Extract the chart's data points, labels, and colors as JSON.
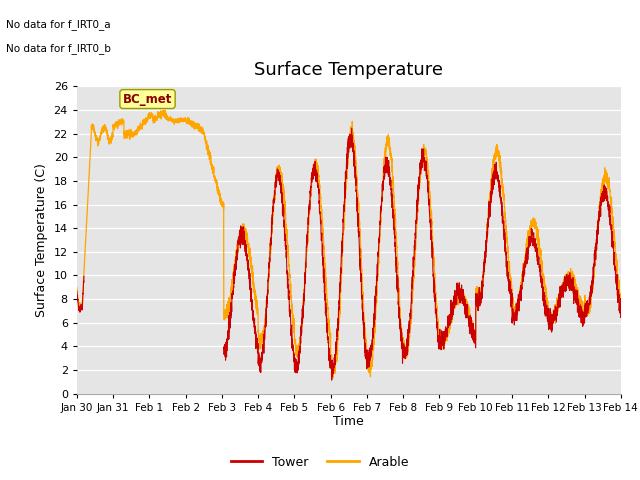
{
  "title": "Surface Temperature",
  "ylabel": "Surface Temperature (C)",
  "xlabel": "Time",
  "ylim": [
    0,
    26
  ],
  "yticks": [
    0,
    2,
    4,
    6,
    8,
    10,
    12,
    14,
    16,
    18,
    20,
    22,
    24,
    26
  ],
  "date_labels": [
    "Jan 30",
    "Jan 31",
    "Feb 1",
    "Feb 2",
    "Feb 3",
    "Feb 4",
    "Feb 5",
    "Feb 6",
    "Feb 7",
    "Feb 8",
    "Feb 9",
    "Feb 10",
    "Feb 11",
    "Feb 12",
    "Feb 13",
    "Feb 14"
  ],
  "tower_color": "#cc0000",
  "arable_color": "#FFA500",
  "bg_color": "#e5e5e5",
  "fig_bg": "#ffffff",
  "annotations": [
    "No data for f_IRT0_a",
    "No data for f_IRT0_b"
  ],
  "bc_met_label": "BC_met",
  "bc_met_bg": "#ffff99",
  "bc_met_border": "#999900",
  "legend_labels": [
    "Tower",
    "Arable"
  ],
  "title_fontsize": 13,
  "label_fontsize": 9,
  "tick_fontsize": 8
}
